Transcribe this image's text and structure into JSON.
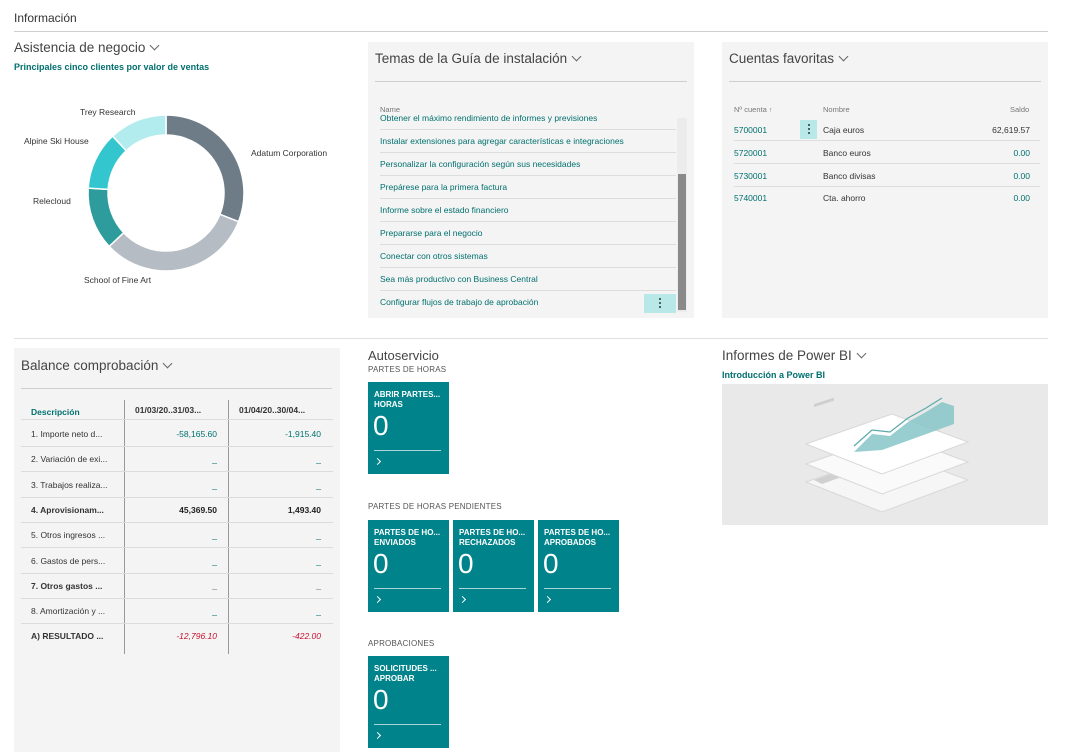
{
  "page": {
    "section_title": "Información"
  },
  "business_assist": {
    "title": "Asistencia de negocio",
    "subtitle": "Principales cinco clientes por valor de ventas"
  },
  "chart_data": {
    "type": "pie",
    "donut": true,
    "categories": [
      "Adatum Corporation",
      "School of Fine Art",
      "Relecloud",
      "Alpine Ski House",
      "Trey Research"
    ],
    "values": [
      31,
      32,
      13,
      12,
      12
    ],
    "colors": [
      "#6e7c87",
      "#b5bcc4",
      "#2e9c9c",
      "#34c6cf",
      "#b3ecef"
    ]
  },
  "setup_guide": {
    "title": "Temas de la Guía de instalación",
    "column_header": "Name",
    "items": [
      "Obtener el máximo rendimiento de informes y previsiones",
      "Instalar extensiones para agregar características e integraciones",
      "Personalizar la configuración según sus necesidades",
      "Prepárese para la primera factura",
      "Informe sobre el estado financiero",
      "Prepararse para el negocio",
      "Conectar con otros sistemas",
      "Sea más productivo con Business Central",
      "Configurar flujos de trabajo de aprobación"
    ]
  },
  "favorite_accounts": {
    "title": "Cuentas favoritas",
    "headers": {
      "no": "Nº cuenta",
      "name": "Nombre",
      "balance": "Saldo"
    },
    "rows": [
      {
        "no": "5700001",
        "name": "Caja euros",
        "balance": "62,619.57"
      },
      {
        "no": "5720001",
        "name": "Banco euros",
        "balance": "0.00"
      },
      {
        "no": "5730001",
        "name": "Banco divisas",
        "balance": "0.00"
      },
      {
        "no": "5740001",
        "name": "Cta. ahorro",
        "balance": "0.00"
      }
    ]
  },
  "trial_balance": {
    "title": "Balance comprobación",
    "headers": {
      "desc": "Descripción",
      "p1": "01/03/20..31/03...",
      "p2": "01/04/20..30/04..."
    },
    "rows": [
      {
        "desc": "1. Importe neto d...",
        "p1": "-58,165.60",
        "p2": "-1,915.40",
        "style": "val"
      },
      {
        "desc": "2. Variación de exi...",
        "p1": "_",
        "p2": "_",
        "style": "val"
      },
      {
        "desc": "3. Trabajos realiza...",
        "p1": "_",
        "p2": "_",
        "style": "val"
      },
      {
        "desc": "4. Aprovisionam...",
        "p1": "45,369.50",
        "p2": "1,493.40",
        "style": "bold"
      },
      {
        "desc": "5. Otros ingresos ...",
        "p1": "_",
        "p2": "_",
        "style": "val"
      },
      {
        "desc": "6. Gastos de pers...",
        "p1": "_",
        "p2": "_",
        "style": "val"
      },
      {
        "desc": "7. Otros gastos ...",
        "p1": "_",
        "p2": "_",
        "style": "bold"
      },
      {
        "desc": "8. Amortización y ...",
        "p1": "_",
        "p2": "_",
        "style": "val"
      },
      {
        "desc": "A) RESULTADO ...",
        "p1": "-12,796.10",
        "p2": "-422.00",
        "style": "neg"
      }
    ]
  },
  "self_service": {
    "title": "Autoservicio",
    "group1": "PARTES DE HORAS",
    "group2": "PARTES DE HORAS PENDIENTES",
    "group3": "APROBACIONES",
    "tiles": [
      {
        "label": "ABRIR PARTES...\nHORAS",
        "value": "0"
      },
      {
        "label": "PARTES DE HO...\nENVIADOS",
        "value": "0"
      },
      {
        "label": "PARTES DE HO...\nRECHAZADOS",
        "value": "0"
      },
      {
        "label": "PARTES DE HO...\nAPROBADOS",
        "value": "0"
      },
      {
        "label": "SOLICITUDES ...\nAPROBAR",
        "value": "0"
      }
    ]
  },
  "powerbi": {
    "title": "Informes de Power BI",
    "subtitle": "Introducción a Power BI"
  }
}
